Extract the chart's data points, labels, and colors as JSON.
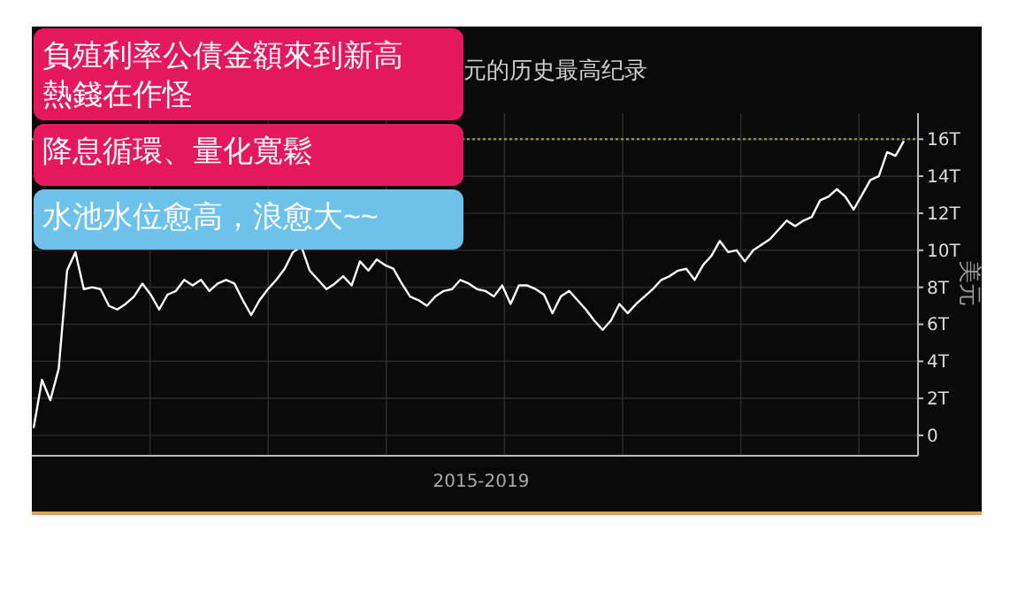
{
  "chart_data": {
    "type": "line",
    "title": "元的历史最高纪录",
    "xlabel": "2015-2019",
    "ylabel": "美元",
    "annotations": [
      "負殖利率公債金額來到新高",
      "熱錢在作怪",
      "降息循環、量化寬鬆",
      "水池水位愈高，浪愈大~~"
    ],
    "categories": [
      null,
      null,
      null,
      null,
      null,
      null,
      null,
      null,
      null,
      null,
      null,
      null,
      null,
      null,
      null,
      null,
      null,
      null,
      null,
      null,
      null,
      null,
      null,
      null,
      null,
      null,
      null,
      null,
      null,
      null,
      null,
      null,
      null,
      null,
      null,
      null,
      null,
      null,
      null,
      null,
      null,
      null,
      null,
      null,
      null,
      null,
      null,
      null,
      null,
      null,
      null,
      null,
      null,
      null,
      null,
      null,
      null,
      null,
      null,
      null,
      null,
      null,
      null,
      null,
      null,
      null,
      null,
      null,
      null,
      null,
      null,
      null,
      null,
      null,
      null,
      null,
      null,
      null,
      null,
      null,
      null,
      null,
      null,
      null,
      null,
      null,
      null,
      null,
      null,
      null,
      null,
      null,
      null,
      null,
      null,
      null,
      null,
      null,
      null,
      null,
      null,
      null,
      null,
      null,
      null
    ],
    "series": [
      {
        "color": "#ffffff",
        "values": [
          0.4,
          3.0,
          1.9,
          3.6,
          8.9,
          9.9,
          7.9,
          8.0,
          7.9,
          7.0,
          6.8,
          7.1,
          7.5,
          8.2,
          7.6,
          6.8,
          7.6,
          7.8,
          8.4,
          8.1,
          8.4,
          7.8,
          8.2,
          8.4,
          8.2,
          7.3,
          6.5,
          7.3,
          7.9,
          8.4,
          9.0,
          9.9,
          10.2,
          8.9,
          8.4,
          7.9,
          8.2,
          8.6,
          8.1,
          9.4,
          8.9,
          9.5,
          9.2,
          9.0,
          8.2,
          7.5,
          7.3,
          7.0,
          7.5,
          7.8,
          7.9,
          8.4,
          8.2,
          7.9,
          7.8,
          7.5,
          8.1,
          7.1,
          8.1,
          8.1,
          7.9,
          7.6,
          6.6,
          7.5,
          7.8,
          7.3,
          6.8,
          6.2,
          5.7,
          6.2,
          7.1,
          6.6,
          7.1,
          7.5,
          7.9,
          8.4,
          8.6,
          8.9,
          9.0,
          8.4,
          9.2,
          9.7,
          10.5,
          9.9,
          10.0,
          9.4,
          10.0,
          10.3,
          10.6,
          11.1,
          11.6,
          11.3,
          11.6,
          11.8,
          12.7,
          12.9,
          13.3,
          12.9,
          12.2,
          13.0,
          13.8,
          14.0,
          15.3,
          15.1,
          15.9
        ]
      }
    ],
    "ylim": [
      -1.1,
      17.4
    ],
    "yticks": [
      0,
      {
        "value": 2,
        "label": "2T"
      },
      {
        "value": 4,
        "label": "4T"
      },
      {
        "value": 6,
        "label": "6T"
      },
      {
        "value": 8,
        "label": "8T"
      },
      {
        "value": 10,
        "label": "10T"
      },
      {
        "value": 12,
        "label": "12T"
      },
      {
        "value": 14,
        "label": "14T"
      },
      {
        "value": 16,
        "label": "16T"
      }
    ],
    "ref_lines": [
      {
        "axis": "y",
        "value": 16,
        "color": "#8c8c3c",
        "line_style": "dotted"
      }
    ],
    "grid": true,
    "line_style": "solid"
  }
}
